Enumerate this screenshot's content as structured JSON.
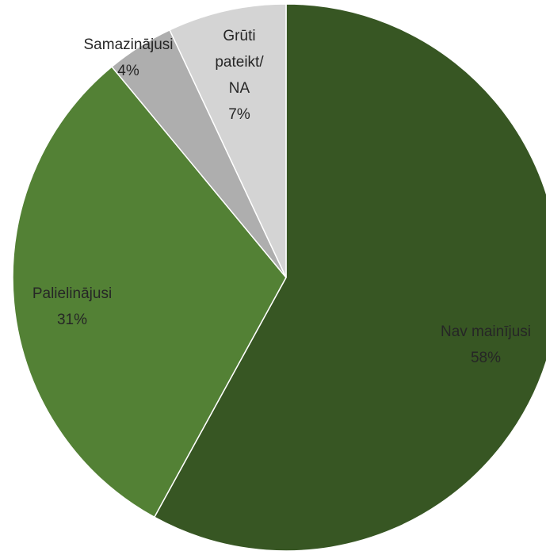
{
  "chart_data": {
    "type": "pie",
    "categories": [
      "Nav mainījusi",
      "Palielinājusi",
      "Samazinājusi",
      "Grūti pateikt/ NA"
    ],
    "values": [
      58,
      31,
      4,
      7
    ],
    "value_labels": [
      "58%",
      "31%",
      "4%",
      "7%"
    ],
    "colors": [
      "#375623",
      "#538135",
      "#aeaeae",
      "#d4d4d4"
    ],
    "start_angle": 0,
    "direction": "clockwise"
  }
}
